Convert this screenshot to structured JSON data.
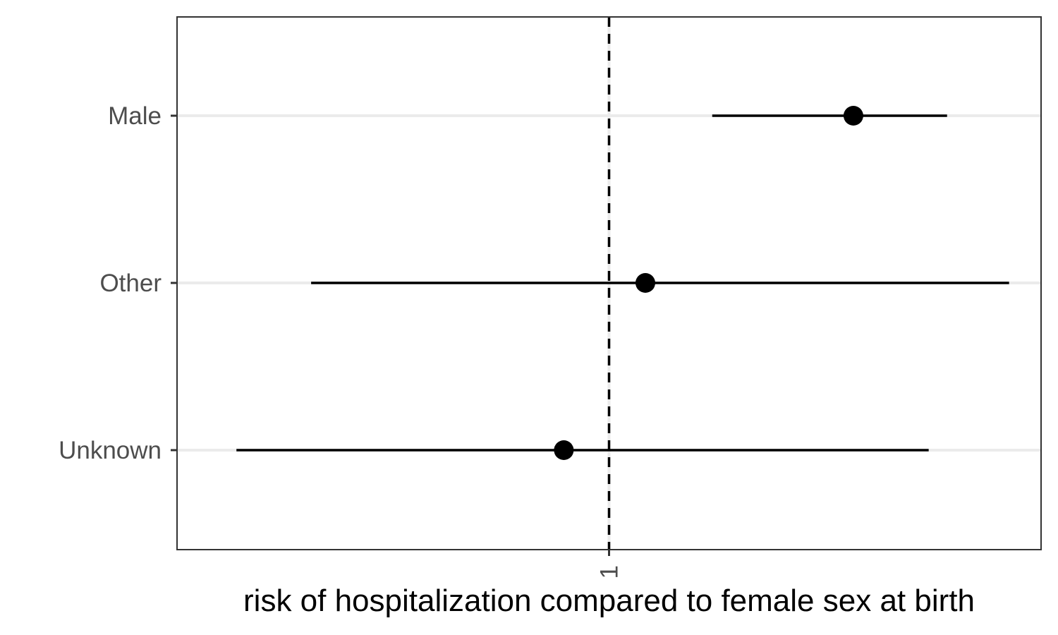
{
  "chart_data": {
    "type": "forest",
    "xlabel": "risk of hospitalization compared to female sex at birth",
    "ylabel": "",
    "x_scale": "log",
    "xlim": [
      0.5,
      2.0
    ],
    "x_ticks": [
      {
        "value": 1,
        "label": "1"
      }
    ],
    "reference_line": {
      "x": 1,
      "style": "dashed"
    },
    "grid": "horizontal-major",
    "legend": "none",
    "categories": [
      "Male",
      "Other",
      "Unknown"
    ],
    "points": [
      {
        "label": "Male",
        "estimate": 1.48,
        "lower": 1.18,
        "upper": 1.72
      },
      {
        "label": "Other",
        "estimate": 1.06,
        "lower": 0.62,
        "upper": 1.9
      },
      {
        "label": "Unknown",
        "estimate": 0.93,
        "lower": 0.55,
        "upper": 1.67
      }
    ],
    "colors": {
      "point": "#000000",
      "interval": "#000000",
      "grid": "#ebebeb",
      "panel_border": "#333333",
      "tick_text": "#4d4d4d"
    }
  }
}
